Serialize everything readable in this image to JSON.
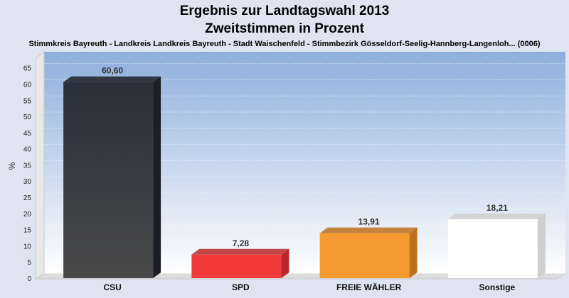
{
  "chart_data": {
    "type": "bar",
    "title": "Ergebnis zur Landtagswahl 2013",
    "subtitle_line2": "Zweitstimmen in Prozent",
    "subtitle": "Stimmkreis Bayreuth - Landkreis Landkreis Bayreuth - Stadt Waischenfeld - Stimmbezirk Gösseldorf-Seelig-Hannberg-Langenloh... (0006)",
    "ylabel": "%",
    "xlabel": "",
    "ylim": [
      0,
      68
    ],
    "yticks": [
      0,
      5,
      10,
      15,
      20,
      25,
      30,
      35,
      40,
      45,
      50,
      55,
      60,
      65
    ],
    "grid": true,
    "categories": [
      "CSU",
      "SPD",
      "FREIE WÄHLER",
      "Sonstige"
    ],
    "values": [
      60.6,
      7.28,
      13.91,
      18.21
    ],
    "value_labels": [
      "60,60",
      "7,28",
      "13,91",
      "18,21"
    ],
    "colors": [
      "#2a2d36",
      "#f23a3a",
      "#f59a30",
      "#ffffff"
    ],
    "side_colors": [
      "#1c1e25",
      "#b82828",
      "#c0701c",
      "#cfcfcf"
    ]
  }
}
